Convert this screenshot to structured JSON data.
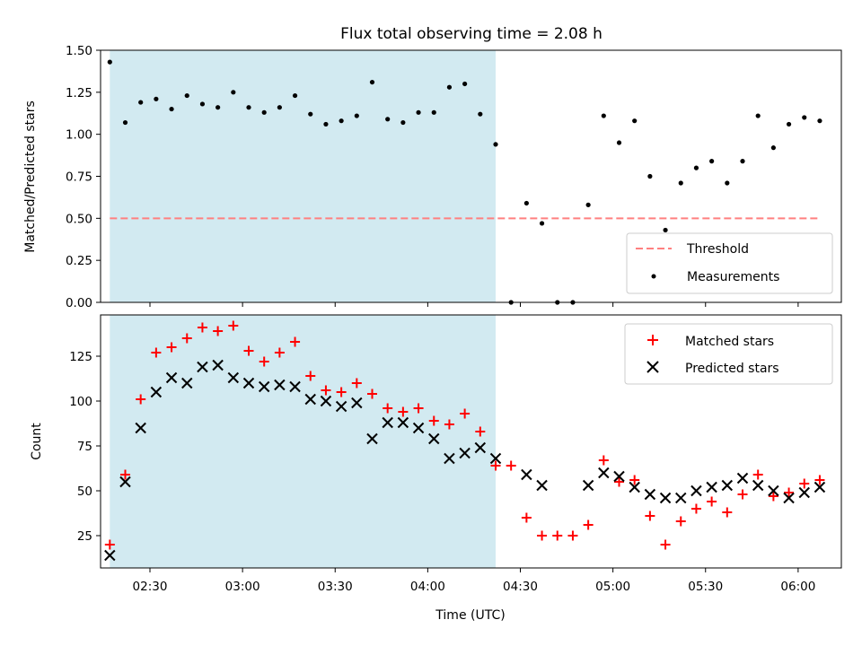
{
  "chart_data": [
    {
      "type": "scatter",
      "title": "Flux total observing time = 2.08 h",
      "xlabel": "",
      "ylabel": "Matched/Predicted stars",
      "ylim": [
        0,
        1.5
      ],
      "y_ticks": [
        "0.00",
        "0.25",
        "0.50",
        "0.75",
        "1.00",
        "1.25",
        "1.50"
      ],
      "x_time_range": [
        "02:14",
        "06:14"
      ],
      "shaded_interval": [
        "02:17",
        "04:22"
      ],
      "shade_color": "#add8e6",
      "legend_position": "lower right",
      "threshold": {
        "name": "Threshold",
        "value": 0.5,
        "x_range": [
          "02:17",
          "06:07"
        ],
        "color": "#ff8080",
        "style": "dashed"
      },
      "series": [
        {
          "name": "Measurements",
          "color": "#000000",
          "marker": "dot",
          "x": [
            "02:17",
            "02:22",
            "02:27",
            "02:32",
            "02:37",
            "02:42",
            "02:47",
            "02:52",
            "02:57",
            "03:02",
            "03:07",
            "03:12",
            "03:17",
            "03:22",
            "03:27",
            "03:32",
            "03:37",
            "03:42",
            "03:47",
            "03:52",
            "03:57",
            "04:02",
            "04:07",
            "04:12",
            "04:17",
            "04:22",
            "04:27",
            "04:32",
            "04:37",
            "04:42",
            "04:47",
            "04:52",
            "04:57",
            "05:02",
            "05:07",
            "05:12",
            "05:17",
            "05:22",
            "05:27",
            "05:32",
            "05:37",
            "05:42",
            "05:47",
            "05:52",
            "05:57",
            "06:02",
            "06:07"
          ],
          "values": [
            1.43,
            1.07,
            1.19,
            1.21,
            1.15,
            1.23,
            1.18,
            1.16,
            1.25,
            1.16,
            1.13,
            1.16,
            1.23,
            1.12,
            1.06,
            1.08,
            1.11,
            1.31,
            1.09,
            1.07,
            1.13,
            1.13,
            1.28,
            1.3,
            1.12,
            0.94,
            0.0,
            0.59,
            0.47,
            0.0,
            0.0,
            0.58,
            1.11,
            0.95,
            1.08,
            0.75,
            0.43,
            0.71,
            0.8,
            0.84,
            0.71,
            0.84,
            1.11,
            0.92,
            1.06,
            1.1,
            1.08
          ]
        }
      ]
    },
    {
      "type": "scatter",
      "title": "",
      "xlabel": "Time (UTC)",
      "ylabel": "Count",
      "ylim": [
        7,
        148
      ],
      "y_ticks": [
        "25",
        "50",
        "75",
        "100",
        "125"
      ],
      "x_ticks": [
        "02:30",
        "03:00",
        "03:30",
        "04:00",
        "04:30",
        "05:00",
        "05:30",
        "06:00"
      ],
      "x_time_range": [
        "02:14",
        "06:14"
      ],
      "shaded_interval": [
        "02:17",
        "04:22"
      ],
      "shade_color": "#add8e6",
      "legend_position": "upper right",
      "series": [
        {
          "name": "Matched stars",
          "color": "#ff0000",
          "marker": "plus",
          "x": [
            "02:17",
            "02:22",
            "02:27",
            "02:32",
            "02:37",
            "02:42",
            "02:47",
            "02:52",
            "02:57",
            "03:02",
            "03:07",
            "03:12",
            "03:17",
            "03:22",
            "03:27",
            "03:32",
            "03:37",
            "03:42",
            "03:47",
            "03:52",
            "03:57",
            "04:02",
            "04:07",
            "04:12",
            "04:17",
            "04:22",
            "04:27",
            "04:32",
            "04:37",
            "04:42",
            "04:47",
            "04:52",
            "04:57",
            "05:02",
            "05:07",
            "05:12",
            "05:17",
            "05:22",
            "05:27",
            "05:32",
            "05:37",
            "05:42",
            "05:47",
            "05:52",
            "05:57",
            "06:02",
            "06:07"
          ],
          "values": [
            20,
            59,
            101,
            127,
            130,
            135,
            141,
            139,
            142,
            128,
            122,
            127,
            133,
            114,
            106,
            105,
            110,
            104,
            96,
            94,
            96,
            89,
            87,
            93,
            83,
            64,
            64,
            35,
            25,
            25,
            25,
            31,
            67,
            55,
            56,
            36,
            20,
            33,
            40,
            44,
            38,
            48,
            59,
            47,
            49,
            54,
            56
          ]
        },
        {
          "name": "Predicted stars",
          "color": "#000000",
          "marker": "x",
          "x": [
            "02:17",
            "02:22",
            "02:27",
            "02:32",
            "02:37",
            "02:42",
            "02:47",
            "02:52",
            "02:57",
            "03:02",
            "03:07",
            "03:12",
            "03:17",
            "03:22",
            "03:27",
            "03:32",
            "03:37",
            "03:42",
            "03:47",
            "03:52",
            "03:57",
            "04:02",
            "04:07",
            "04:12",
            "04:17",
            "04:22",
            "04:32",
            "04:37",
            "04:52",
            "04:57",
            "05:02",
            "05:07",
            "05:12",
            "05:17",
            "05:22",
            "05:27",
            "05:32",
            "05:37",
            "05:42",
            "05:47",
            "05:52",
            "05:57",
            "06:02",
            "06:07"
          ],
          "values": [
            14,
            55,
            85,
            105,
            113,
            110,
            119,
            120,
            113,
            110,
            108,
            109,
            108,
            101,
            100,
            97,
            99,
            79,
            88,
            88,
            85,
            79,
            68,
            71,
            74,
            68,
            59,
            53,
            53,
            60,
            58,
            52,
            48,
            46,
            46,
            50,
            52,
            53,
            57,
            53,
            50,
            46,
            49,
            52
          ]
        }
      ]
    }
  ]
}
